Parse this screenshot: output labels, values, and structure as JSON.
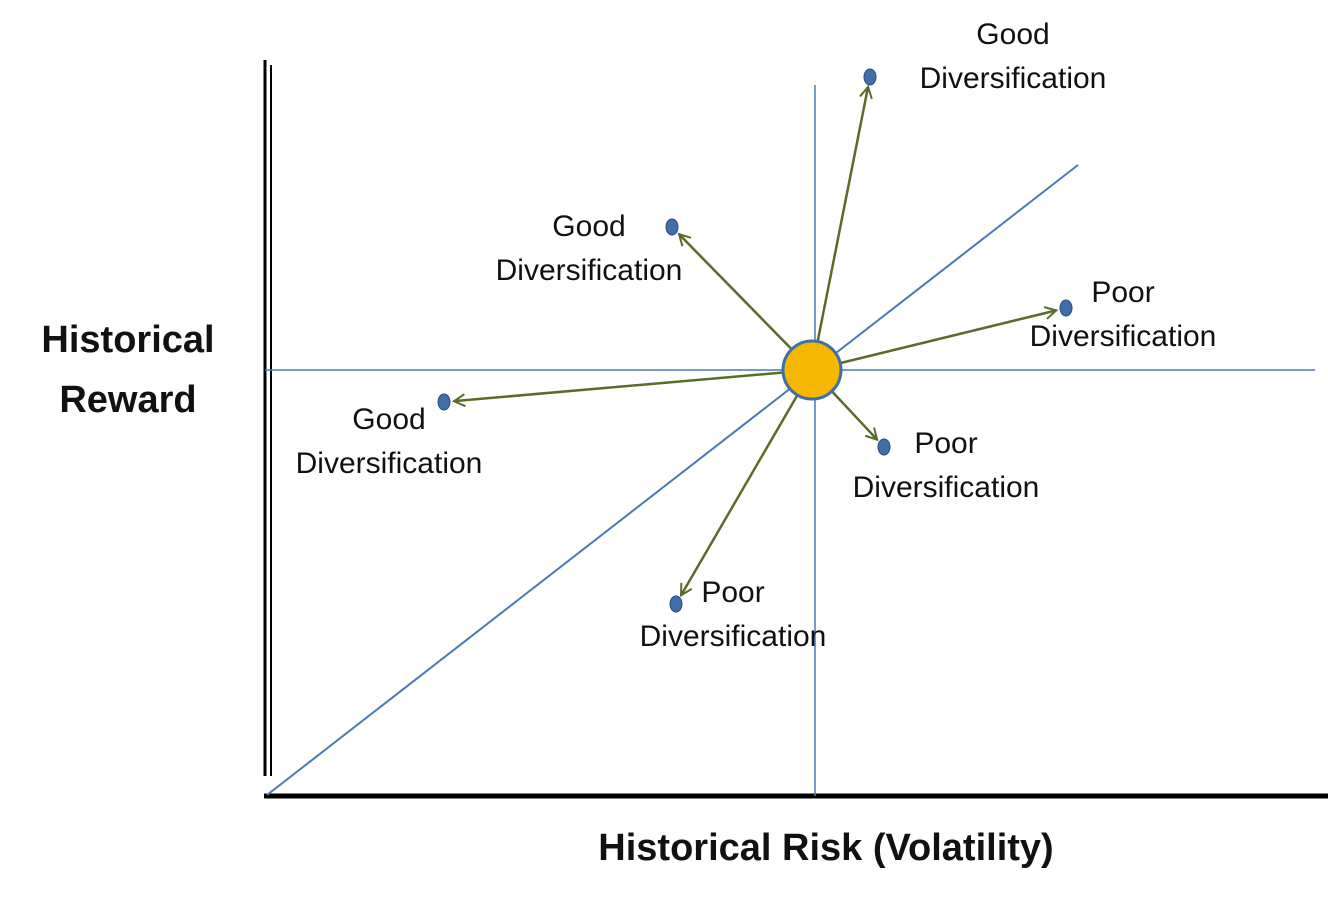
{
  "y_axis_label": [
    "Historical",
    "Reward"
  ],
  "x_axis_label": "Historical Risk (Volatility)",
  "nodes": [
    {
      "lines": [
        "Good",
        "Diversification"
      ]
    },
    {
      "lines": [
        "Good",
        "Diversification"
      ]
    },
    {
      "lines": [
        "Poor",
        "Diversification"
      ]
    },
    {
      "lines": [
        "Good",
        "Diversification"
      ]
    },
    {
      "lines": [
        "Poor",
        "Diversification"
      ]
    },
    {
      "lines": [
        "Poor",
        "Diversification"
      ]
    }
  ]
}
